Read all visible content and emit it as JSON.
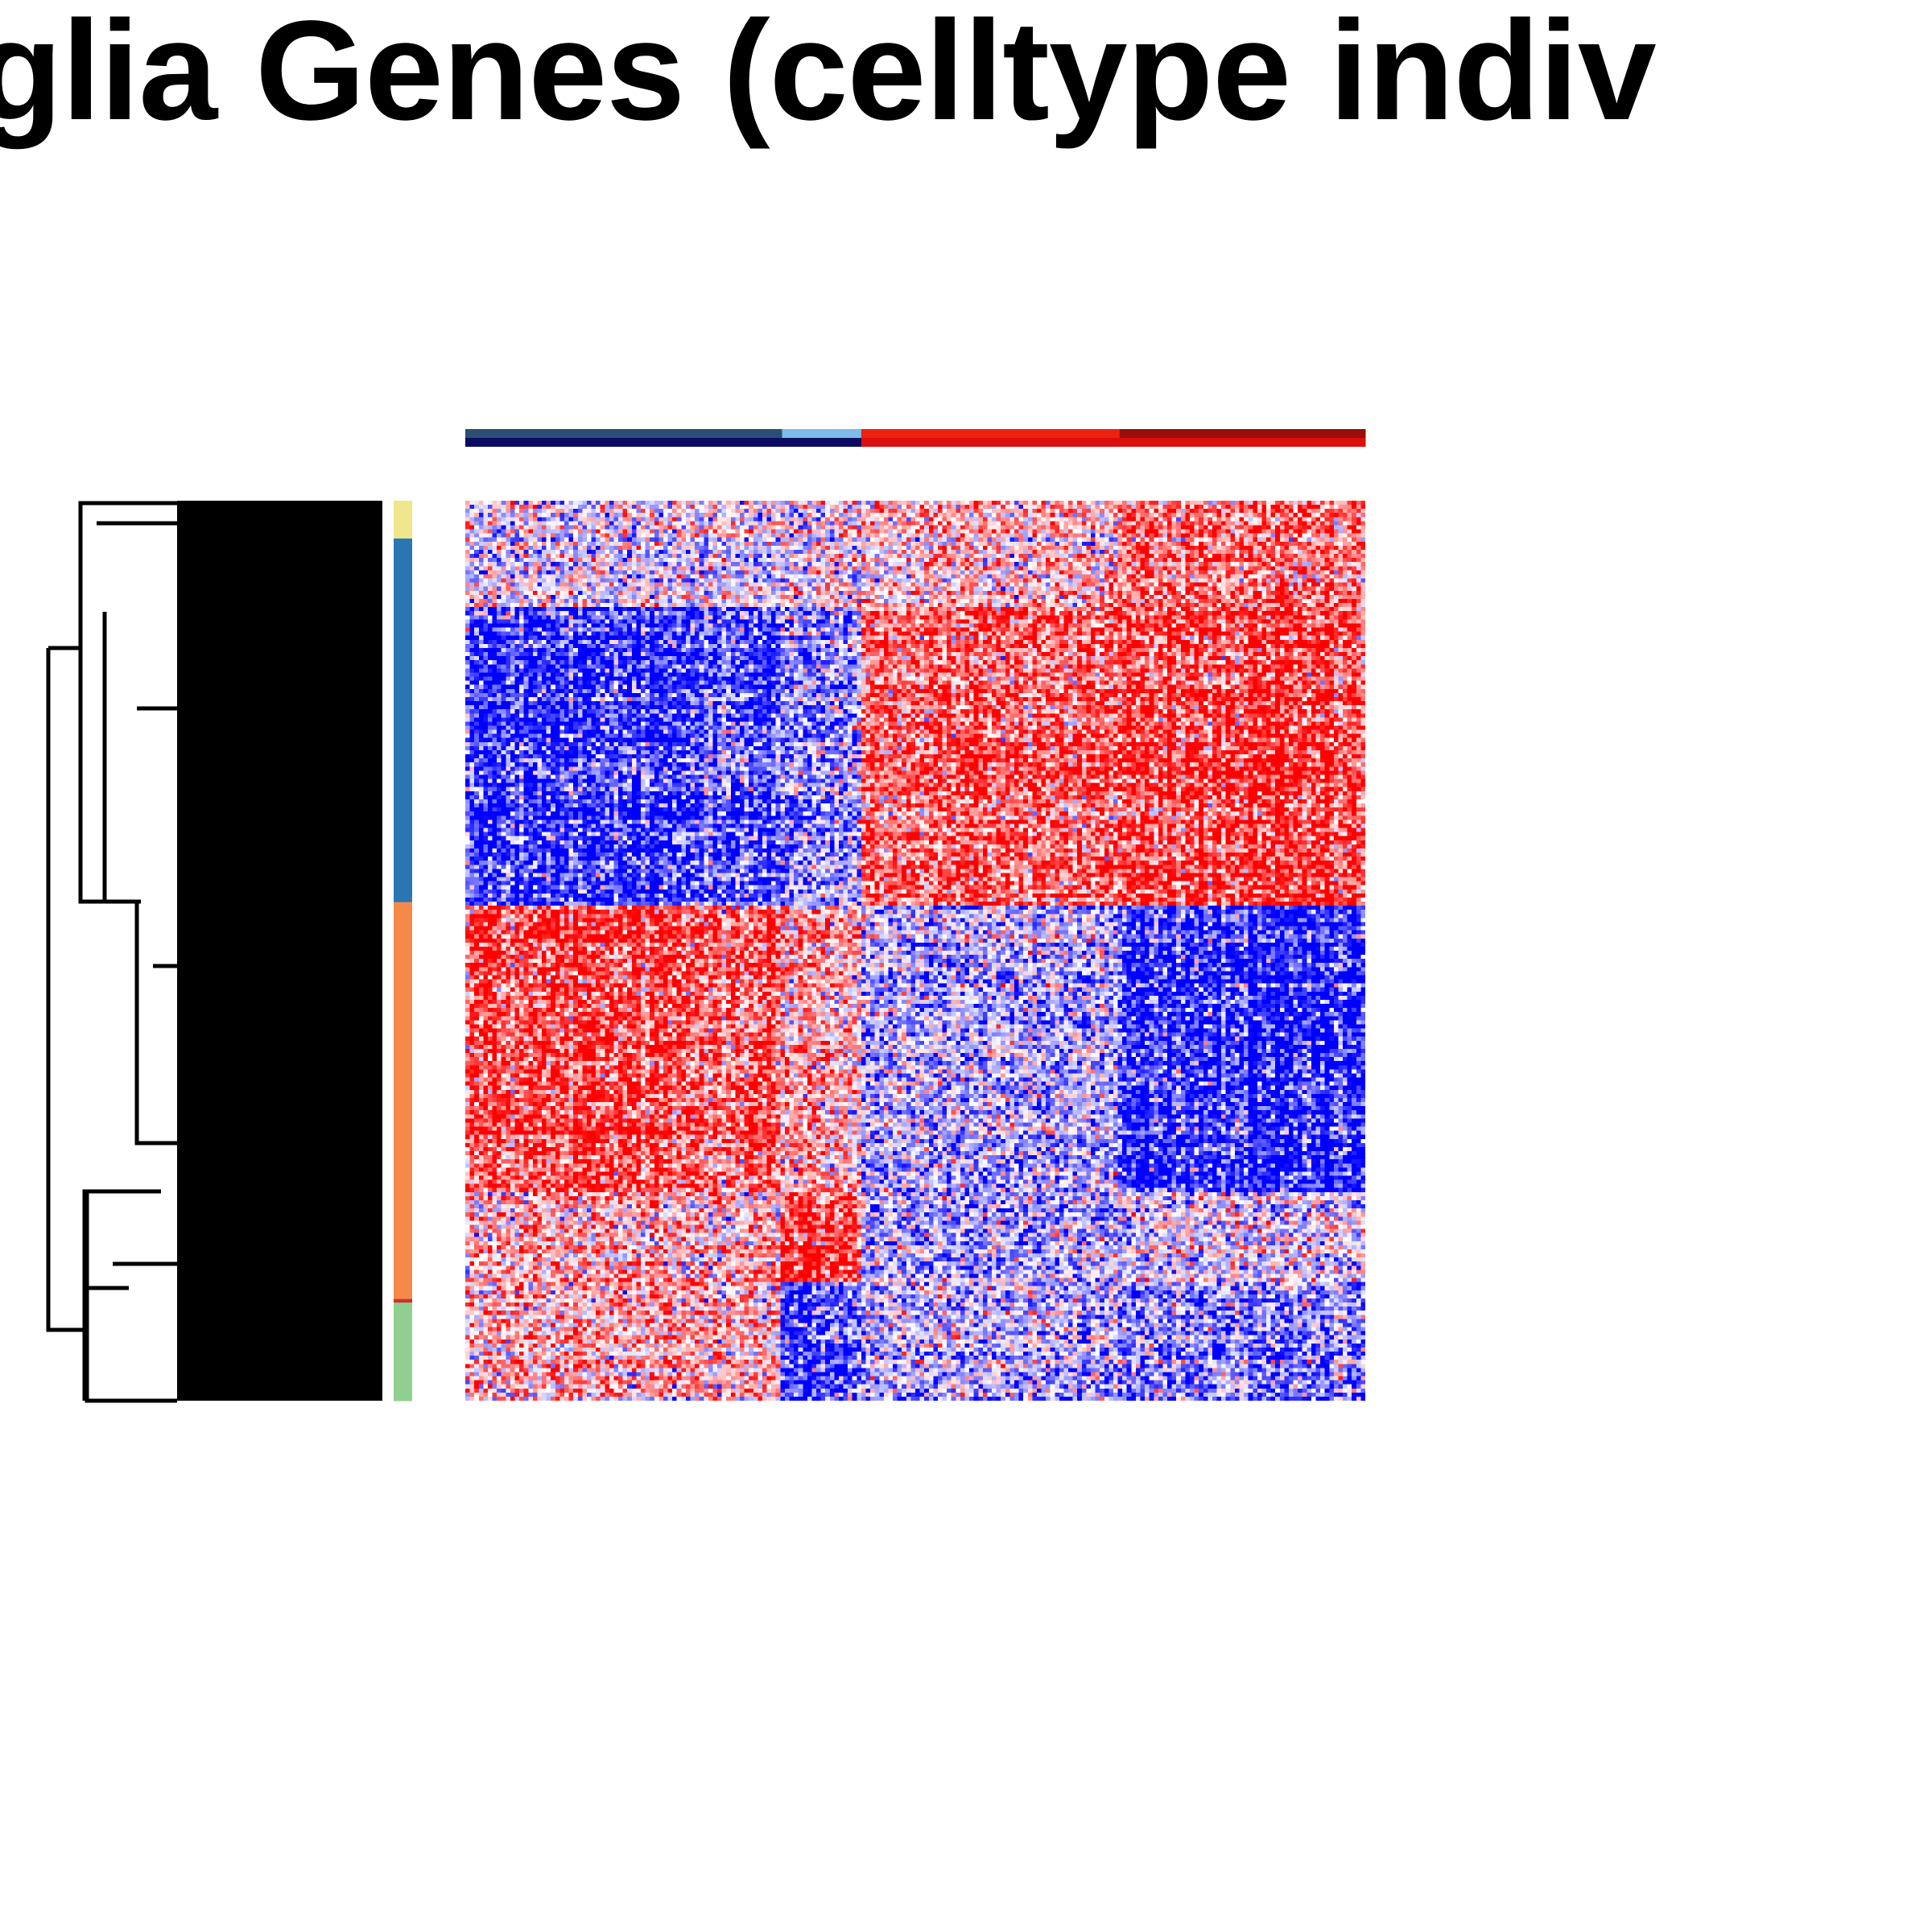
{
  "chart_data": {
    "type": "heatmap",
    "title": "glia Genes (celltype indiv",
    "color_scale": {
      "low": "#0000ff",
      "mid": "#ffffff",
      "high": "#ff0000"
    },
    "dendrogram": "rows",
    "column_annotation": {
      "top_band": [
        {
          "color": "#2b4f74",
          "fraction": 0.352
        },
        {
          "color": "#7dbbe8",
          "fraction": 0.088
        },
        {
          "color": "#ee2211",
          "fraction": 0.287
        },
        {
          "color": "#990e08",
          "fraction": 0.273
        }
      ],
      "bottom_band": [
        {
          "color": "#0b0b63",
          "fraction": 0.44
        },
        {
          "color": "#dd0e0e",
          "fraction": 0.56
        }
      ]
    },
    "row_annotation": [
      {
        "color": "#f0e68c",
        "fraction": 0.042
      },
      {
        "color": "#2a76b3",
        "fraction": 0.404
      },
      {
        "color": "#f5894a",
        "fraction": 0.441
      },
      {
        "color": "#cc3333",
        "fraction": 0.004
      },
      {
        "color": "#8fcf8f",
        "fraction": 0.109
      }
    ],
    "column_groups": [
      0.352,
      0.088,
      0.287,
      0.273
    ],
    "row_blocks": [
      {
        "fraction": 0.12,
        "values": [
          -0.1,
          0.0,
          0.2,
          0.6
        ]
      },
      {
        "fraction": 0.33,
        "values": [
          -0.9,
          -0.5,
          0.7,
          0.85
        ]
      },
      {
        "fraction": 0.32,
        "values": [
          0.85,
          0.4,
          -0.3,
          -0.9
        ]
      },
      {
        "fraction": 0.1,
        "values": [
          0.3,
          0.9,
          -0.4,
          -0.1
        ]
      },
      {
        "fraction": 0.13,
        "values": [
          0.3,
          -0.8,
          -0.3,
          -0.5
        ]
      }
    ]
  }
}
